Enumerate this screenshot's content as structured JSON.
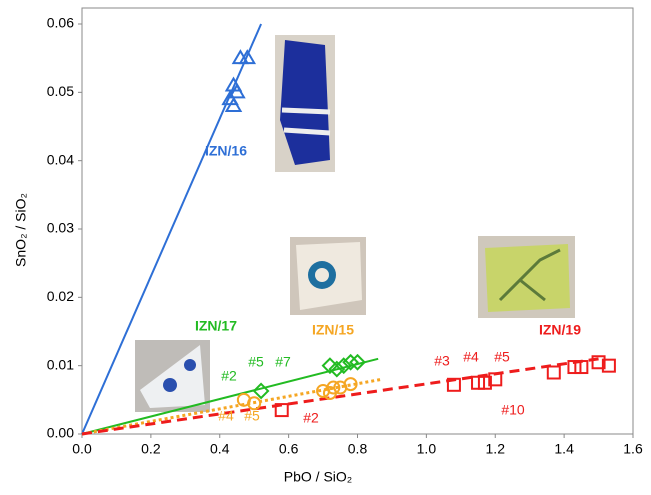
{
  "chart_data": {
    "type": "scatter",
    "x_label": "PbO / SiO₂",
    "y_label": "SnO₂ / SiO₂",
    "xlim": [
      0,
      1.6
    ],
    "ylim": [
      0,
      0.06
    ],
    "xticks": [
      {
        "value": 0,
        "label": "0.0"
      },
      0.2,
      0.4,
      0.6,
      0.8,
      {
        "value": 1,
        "label": "1.0"
      },
      1.2,
      1.4,
      1.6
    ],
    "yticks": [
      {
        "value": 0,
        "label": "0.00"
      },
      0.01,
      0.02,
      0.03,
      0.04,
      0.05,
      0.06
    ],
    "series": [
      {
        "name": "IZN/16",
        "color": "#2e6fd6",
        "marker": "triangle",
        "x": [
          0.46,
          0.48,
          0.44,
          0.45,
          0.43,
          0.44
        ],
        "values": [
          0.055,
          0.055,
          0.051,
          0.05,
          0.049,
          0.048
        ]
      },
      {
        "name": "IZN/17",
        "color": "#22bb22",
        "marker": "diamond",
        "x": [
          0.52,
          0.72,
          0.74,
          0.76,
          0.78,
          0.8
        ],
        "values": [
          0.0063,
          0.01,
          0.0095,
          0.01,
          0.0105,
          0.0105
        ]
      },
      {
        "name": "IZN/15",
        "color": "#f5a623",
        "marker": "circle",
        "x": [
          0.47,
          0.5,
          0.7,
          0.72,
          0.73,
          0.75,
          0.78
        ],
        "values": [
          0.005,
          0.0045,
          0.0063,
          0.006,
          0.0068,
          0.0068,
          0.0073
        ]
      },
      {
        "name": "IZN/19",
        "color": "#ee1c1c",
        "marker": "square",
        "x": [
          0.58,
          1.08,
          1.15,
          1.17,
          1.2,
          1.37,
          1.43,
          1.45,
          1.5,
          1.53
        ],
        "values": [
          0.0035,
          0.0072,
          0.0075,
          0.0075,
          0.008,
          0.009,
          0.0098,
          0.0098,
          0.0105,
          0.01
        ]
      }
    ],
    "trend_lines": [
      {
        "color": "#2e6fd6",
        "style": "solid",
        "x": [
          0,
          0.52
        ],
        "values": [
          0,
          0.06
        ]
      },
      {
        "color": "#22bb22",
        "style": "solid",
        "x": [
          0,
          0.86
        ],
        "values": [
          0,
          0.011
        ]
      },
      {
        "color": "#f5a623",
        "style": "dotted",
        "x": [
          0,
          0.87
        ],
        "values": [
          0,
          0.008
        ]
      },
      {
        "color": "#ee1c1c",
        "style": "dashed",
        "x": [
          0,
          1.5
        ],
        "values": [
          0,
          0.011
        ]
      }
    ],
    "annotations": [
      {
        "text": "#2",
        "color": "#22bb22"
      },
      {
        "text": "#5",
        "color": "#22bb22"
      },
      {
        "text": "#7",
        "color": "#22bb22"
      },
      {
        "text": "#4",
        "color": "#f5a623"
      },
      {
        "text": "#5",
        "color": "#f5a623"
      },
      {
        "text": "#2",
        "color": "#ee1c1c"
      },
      {
        "text": "#3",
        "color": "#ee1c1c"
      },
      {
        "text": "#4",
        "color": "#ee1c1c"
      },
      {
        "text": "#5",
        "color": "#ee1c1c"
      },
      {
        "text": "#10",
        "color": "#ee1c1c"
      }
    ]
  }
}
